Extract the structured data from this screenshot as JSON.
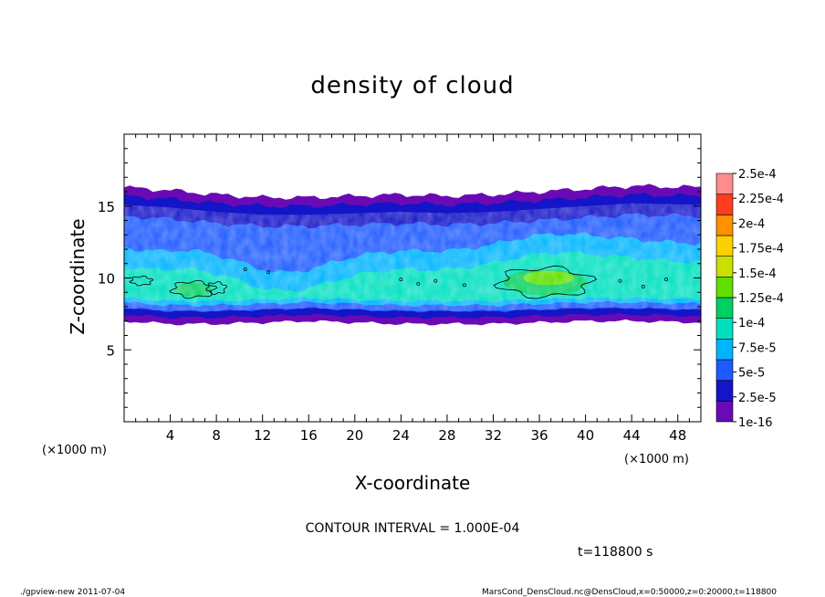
{
  "chart_data": {
    "type": "heatmap",
    "title": "density of cloud",
    "xlabel": "X-coordinate",
    "ylabel": "Z-coordinate",
    "x_unit": "(×1000 m)",
    "y_unit": "(×1000 m)",
    "xlim": [
      0,
      50
    ],
    "ylim": [
      0,
      20
    ],
    "x_ticks": [
      4,
      8,
      12,
      16,
      20,
      24,
      28,
      32,
      36,
      40,
      44,
      48
    ],
    "y_ticks": [
      5,
      10,
      15
    ],
    "x_minor_step": 1,
    "y_minor_step": 1,
    "colorbar": {
      "labels": [
        "1e-16",
        "2.5e-5",
        "5e-5",
        "7.5e-5",
        "1e-4",
        "1.25e-4",
        "1.5e-4",
        "1.75e-4",
        "2e-4",
        "2.25e-4",
        "2.5e-4"
      ],
      "colors": [
        "#6a0ab4",
        "#1414c8",
        "#1e5aff",
        "#00b4ff",
        "#00e0c0",
        "#00d060",
        "#60e000",
        "#c8e000",
        "#ffd000",
        "#ff9000",
        "#ff3c1e",
        "#ff8c8c"
      ]
    },
    "cloud_layer": {
      "bottom_km": [
        7.0,
        6.8,
        6.8,
        6.9,
        7.0,
        6.9,
        6.8,
        6.8,
        6.8,
        6.9,
        7.0,
        7.0,
        6.9
      ],
      "top_km": [
        16.3,
        16.1,
        15.8,
        15.6,
        15.6,
        15.7,
        15.8,
        15.7,
        15.8,
        16.0,
        16.2,
        16.4,
        16.3
      ],
      "profile_x": [
        0,
        4,
        8,
        12,
        16,
        20,
        24,
        28,
        32,
        36,
        40,
        44,
        50
      ]
    },
    "contour_interval": "CONTOUR INTERVAL = 1.000E-04"
  },
  "time_label": "t=118800 s",
  "footer": {
    "left": "./gpview-new  2011-07-04",
    "right": "MarsCond_DensCloud.nc@DensCloud,x=0:50000,z=0:20000,t=118800"
  }
}
